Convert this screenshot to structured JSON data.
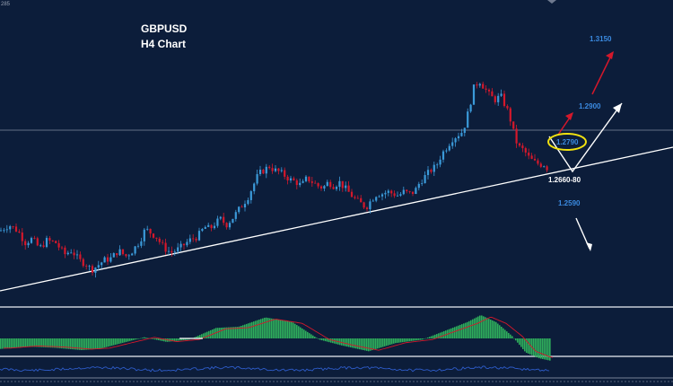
{
  "chart_data": {
    "type": "candlestick",
    "title": "GBPUSD",
    "subtitle": "H4 Chart",
    "axis_fragment": "285",
    "y_range": [
      1.2455,
      1.3235
    ],
    "colors": {
      "background": "#0c1d3a",
      "bull": "#3b9ad9",
      "bear": "#d4182b",
      "histogram": "#2fae5c",
      "label": "#3b8ae0",
      "text": "#ffffff",
      "highlight_ring": "#f2e210"
    },
    "annotations": {
      "target_high": "1.3150",
      "target_mid": "1.2900",
      "current": "1.2790",
      "pivot_zone": "1.2660-80",
      "target_low": "1.2590"
    },
    "price_path": [
      [
        0,
        1.2645
      ],
      [
        10,
        1.266
      ],
      [
        20,
        1.2645
      ],
      [
        28,
        1.2615
      ],
      [
        36,
        1.2625
      ],
      [
        44,
        1.26
      ],
      [
        52,
        1.262
      ],
      [
        62,
        1.2615
      ],
      [
        72,
        1.2585
      ],
      [
        80,
        1.2595
      ],
      [
        88,
        1.257
      ],
      [
        96,
        1.256
      ],
      [
        102,
        1.2545
      ],
      [
        108,
        1.2555
      ],
      [
        116,
        1.257
      ],
      [
        124,
        1.2575
      ],
      [
        132,
        1.2595
      ],
      [
        140,
        1.258
      ],
      [
        148,
        1.2595
      ],
      [
        156,
        1.262
      ],
      [
        162,
        1.265
      ],
      [
        168,
        1.264
      ],
      [
        174,
        1.263
      ],
      [
        180,
        1.261
      ],
      [
        186,
        1.2595
      ],
      [
        192,
        1.259
      ],
      [
        200,
        1.26
      ],
      [
        208,
        1.2615
      ],
      [
        214,
        1.2625
      ],
      [
        220,
        1.263
      ],
      [
        228,
        1.2655
      ],
      [
        234,
        1.265
      ],
      [
        240,
        1.2665
      ],
      [
        246,
        1.2675
      ],
      [
        252,
        1.266
      ],
      [
        260,
        1.268
      ],
      [
        268,
        1.2705
      ],
      [
        276,
        1.273
      ],
      [
        282,
        1.276
      ],
      [
        288,
        1.279
      ],
      [
        294,
        1.28
      ],
      [
        300,
        1.281
      ],
      [
        306,
        1.28
      ],
      [
        312,
        1.2795
      ],
      [
        318,
        1.2785
      ],
      [
        324,
        1.2775
      ],
      [
        330,
        1.277
      ],
      [
        336,
        1.276
      ],
      [
        342,
        1.278
      ],
      [
        348,
        1.277
      ],
      [
        354,
        1.276
      ],
      [
        360,
        1.2755
      ],
      [
        366,
        1.277
      ],
      [
        372,
        1.276
      ],
      [
        378,
        1.277
      ],
      [
        384,
        1.2755
      ],
      [
        390,
        1.274
      ],
      [
        396,
        1.2725
      ],
      [
        402,
        1.2715
      ],
      [
        408,
        1.2705
      ],
      [
        414,
        1.2725
      ],
      [
        420,
        1.274
      ],
      [
        426,
        1.274
      ],
      [
        432,
        1.2745
      ],
      [
        438,
        1.274
      ],
      [
        444,
        1.2735
      ],
      [
        450,
        1.2745
      ],
      [
        456,
        1.274
      ],
      [
        462,
        1.2745
      ],
      [
        468,
        1.277
      ],
      [
        474,
        1.2785
      ],
      [
        480,
        1.28
      ],
      [
        486,
        1.281
      ],
      [
        492,
        1.284
      ],
      [
        498,
        1.286
      ],
      [
        504,
        1.288
      ],
      [
        510,
        1.289
      ],
      [
        516,
        1.29
      ],
      [
        522,
        1.295
      ],
      [
        528,
        1.301
      ],
      [
        534,
        1.303
      ],
      [
        540,
        1.301
      ],
      [
        546,
        1.299
      ],
      [
        552,
        1.298
      ],
      [
        558,
        1.299
      ],
      [
        562,
        1.297
      ],
      [
        566,
        1.295
      ],
      [
        570,
        1.292
      ],
      [
        574,
        1.288
      ],
      [
        578,
        1.286
      ],
      [
        584,
        1.285
      ],
      [
        590,
        1.283
      ],
      [
        596,
        1.282
      ],
      [
        602,
        1.2815
      ],
      [
        606,
        1.2815
      ],
      [
        612,
        1.28
      ]
    ],
    "indicator_levels": [
      [
        0,
        -0.45
      ],
      [
        30,
        -0.35
      ],
      [
        60,
        -0.4
      ],
      [
        90,
        -0.5
      ],
      [
        110,
        -0.45
      ],
      [
        135,
        -0.2
      ],
      [
        160,
        0.05
      ],
      [
        185,
        -0.15
      ],
      [
        210,
        -0.05
      ],
      [
        240,
        0.45
      ],
      [
        265,
        0.5
      ],
      [
        295,
        0.9
      ],
      [
        325,
        0.7
      ],
      [
        355,
        -0.05
      ],
      [
        380,
        -0.3
      ],
      [
        410,
        -0.55
      ],
      [
        440,
        -0.2
      ],
      [
        470,
        -0.05
      ],
      [
        500,
        0.4
      ],
      [
        520,
        0.7
      ],
      [
        535,
        1.0
      ],
      [
        552,
        0.7
      ],
      [
        570,
        0.1
      ],
      [
        585,
        -0.6
      ],
      [
        600,
        -0.85
      ],
      [
        612,
        -0.95
      ]
    ]
  }
}
